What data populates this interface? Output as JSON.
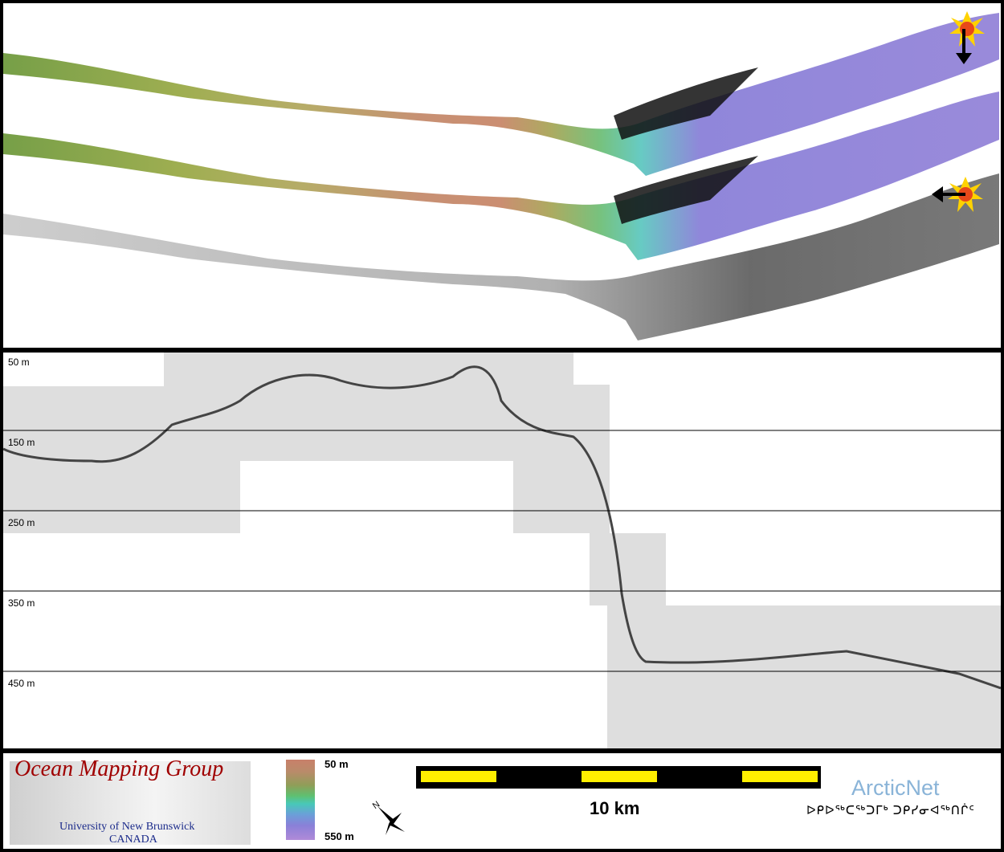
{
  "map": {
    "icons": [
      "sun-marker-icon",
      "arrow-down-icon",
      "arrow-left-icon"
    ],
    "colors": {
      "shallow": "#c98a6a",
      "mid": "#7fb060",
      "deep": "#8a7fd8",
      "backscatter": "#7a7a7a"
    }
  },
  "profile": {
    "depth_labels": [
      "50 m",
      "150 m",
      "250 m",
      "350 m",
      "450 m"
    ]
  },
  "legend": {
    "org_name": "Ocean Mapping Group",
    "university": "University of New Brunswick",
    "country": "CANADA",
    "colorbar_top": "50 m",
    "colorbar_bottom": "550 m",
    "north_label": "N",
    "scale_label": "10 km",
    "partner_name": "ArcticNet",
    "partner_syllabics": "ᐅᑭᐅᖅᑕᖅᑐᒥᒃ ᑐᑭᓯᓂᐊᖅᑎᒌᑦ"
  }
}
